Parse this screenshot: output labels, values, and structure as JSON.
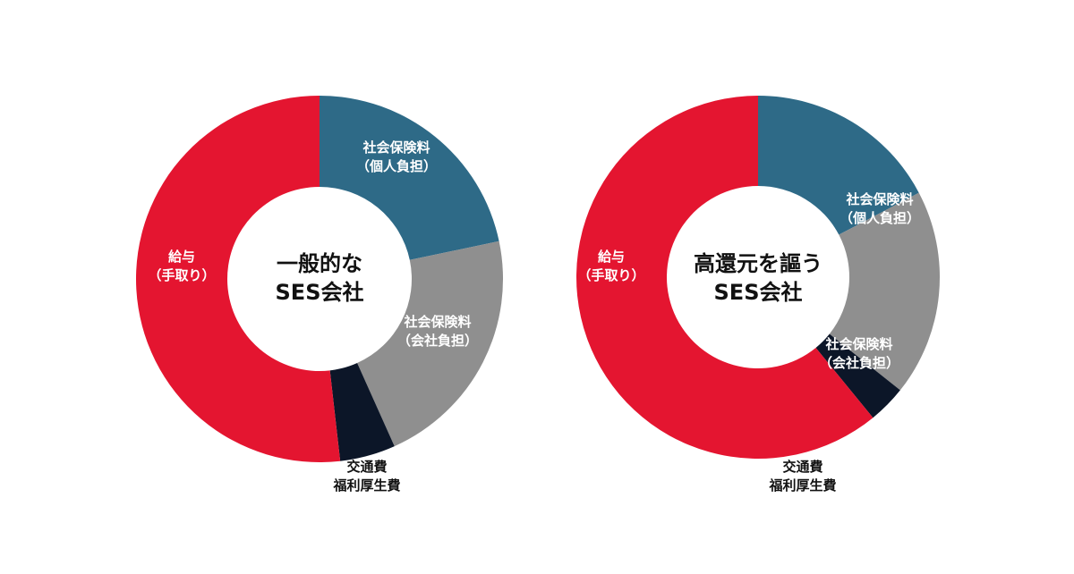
{
  "chart_data": [
    {
      "type": "donut",
      "center_label": [
        "一般的な",
        "SES会社"
      ],
      "slices": [
        {
          "label": [
            "社会保険料",
            "（個人負担）"
          ],
          "value": 21.7,
          "color": "#2e6a87",
          "label_color": "#ffffff"
        },
        {
          "label": [
            "社会保険料",
            "（会社負担）"
          ],
          "value": 21.6,
          "color": "#8f8f8f",
          "label_color": "#ffffff"
        },
        {
          "label": [
            "交通費",
            "福利厚生費"
          ],
          "value": 4.9,
          "color": "#0c1628",
          "label_color": "#111111"
        },
        {
          "label": [
            "給与",
            "（手取り）"
          ],
          "value": 51.8,
          "color": "#e41530",
          "label_color": "#ffffff"
        }
      ]
    },
    {
      "type": "donut",
      "center_label": [
        "高還元を謳う",
        "SES会社"
      ],
      "slices": [
        {
          "label": [
            "社会保険料",
            "（個人負担）"
          ],
          "value": 17.3,
          "color": "#2e6a87",
          "label_color": "#ffffff"
        },
        {
          "label": [
            "社会保険料",
            "（会社負担）"
          ],
          "value": 18.4,
          "color": "#8f8f8f",
          "label_color": "#ffffff"
        },
        {
          "label": [
            "交通費",
            "福利厚生費"
          ],
          "value": 3.4,
          "color": "#0c1628",
          "label_color": "#111111"
        },
        {
          "label": [
            "給与",
            "（手取り）"
          ],
          "value": 60.9,
          "color": "#e41530",
          "label_color": "#ffffff"
        }
      ]
    }
  ]
}
